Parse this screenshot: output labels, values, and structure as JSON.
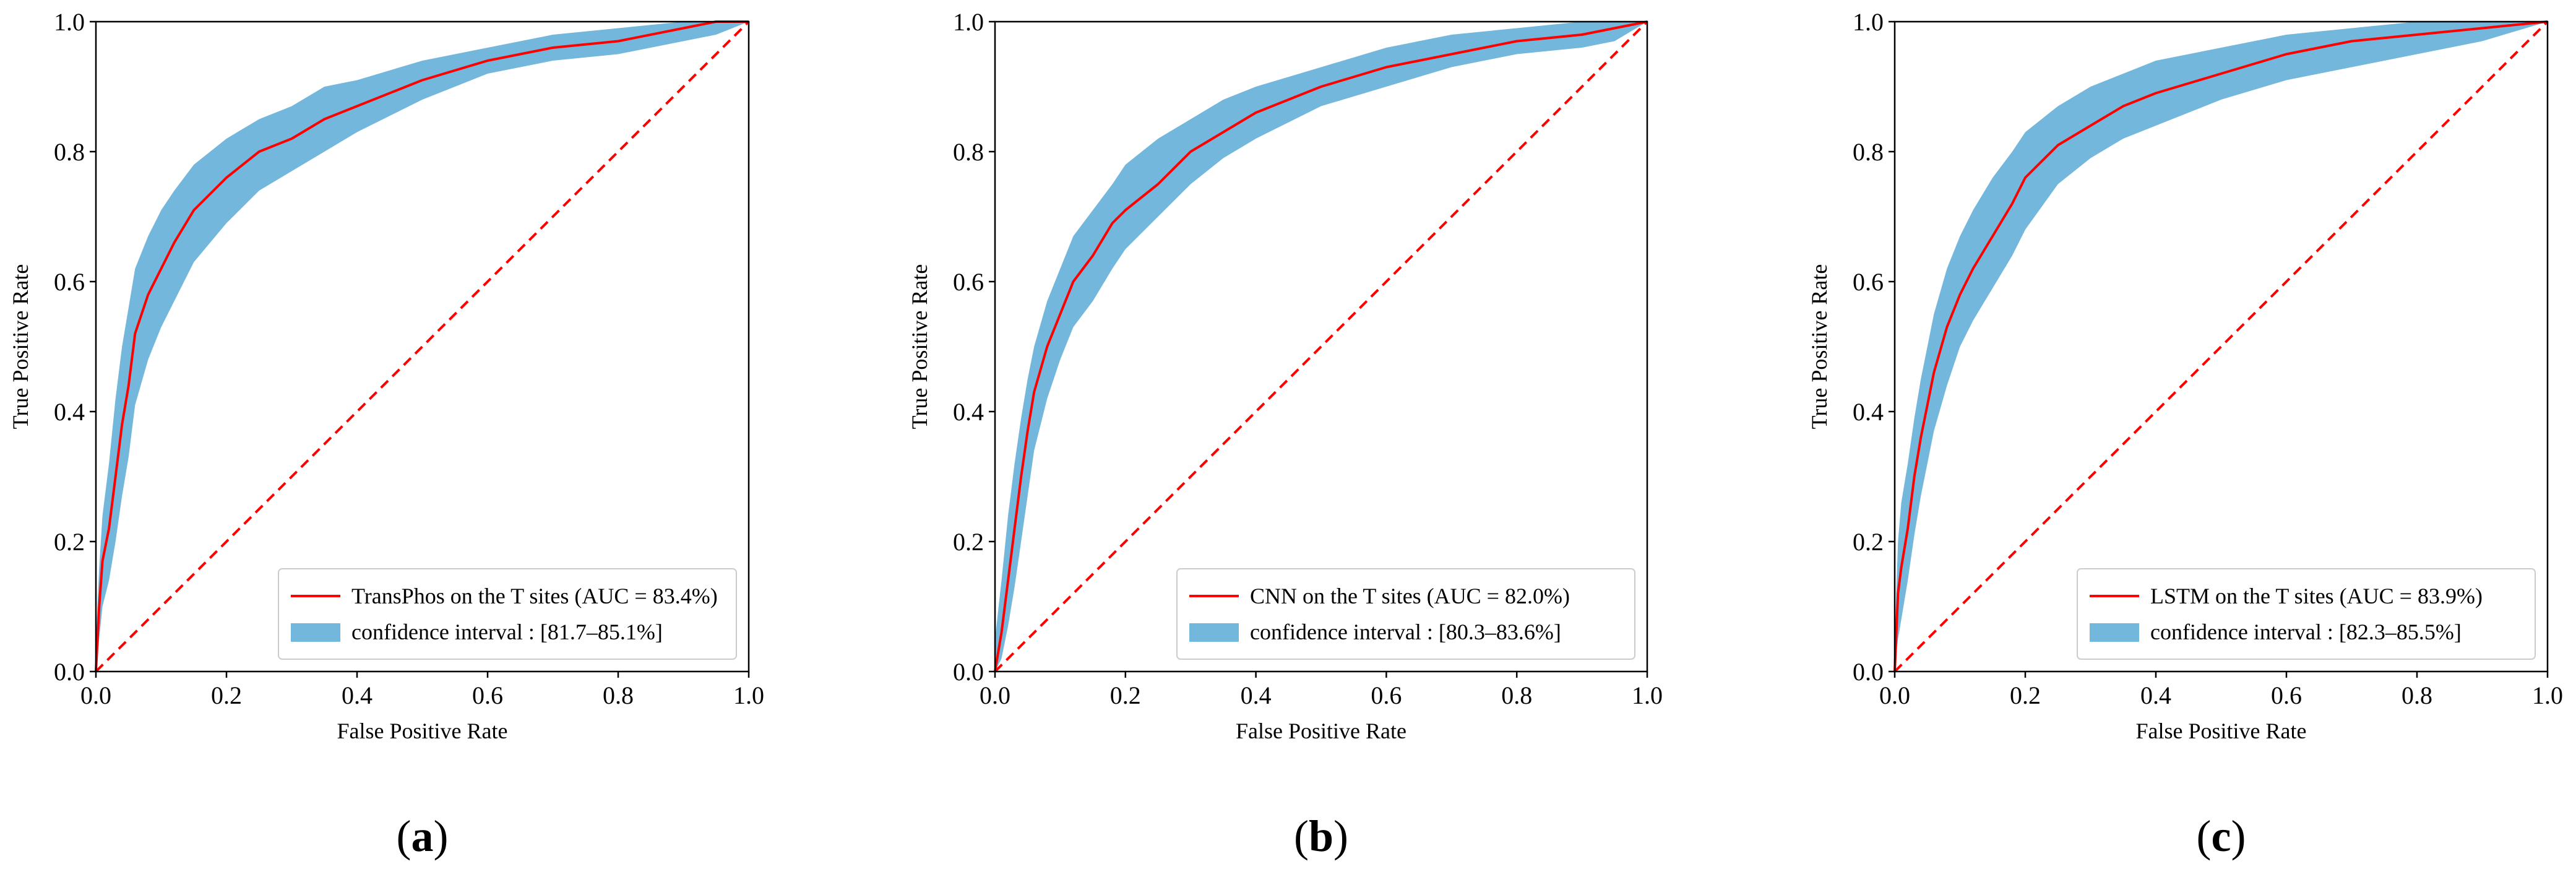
{
  "chart_data": [
    {
      "panel": "a",
      "panel_label": "(a)",
      "type": "line",
      "xlabel": "False Positive Rate",
      "ylabel": "True Positive Rate",
      "xlim": [
        0.0,
        1.0
      ],
      "ylim": [
        0.0,
        1.0
      ],
      "xticks": [
        "0.0",
        "0.2",
        "0.4",
        "0.6",
        "0.8",
        "1.0"
      ],
      "yticks": [
        "0.0",
        "0.2",
        "0.4",
        "0.6",
        "0.8",
        "1.0"
      ],
      "legend_position": "lower-right",
      "colors": {
        "roc": "#ff0000",
        "band": "#74b7dc",
        "diagonal": "#ff0000"
      },
      "roc": {
        "label": "TransPhos on the T sites (AUC = 83.4%)",
        "x": [
          0.0,
          0.005,
          0.01,
          0.02,
          0.03,
          0.04,
          0.05,
          0.06,
          0.08,
          0.1,
          0.12,
          0.15,
          0.2,
          0.25,
          0.3,
          0.35,
          0.4,
          0.5,
          0.6,
          0.7,
          0.8,
          0.9,
          0.95,
          1.0
        ],
        "y": [
          0.0,
          0.1,
          0.17,
          0.22,
          0.3,
          0.38,
          0.44,
          0.52,
          0.58,
          0.62,
          0.66,
          0.71,
          0.76,
          0.8,
          0.82,
          0.85,
          0.87,
          0.91,
          0.94,
          0.96,
          0.97,
          0.99,
          1.0,
          1.0
        ]
      },
      "band": {
        "label": "confidence interval : [81.7–85.1%]",
        "x": [
          0.0,
          0.005,
          0.01,
          0.02,
          0.03,
          0.04,
          0.05,
          0.06,
          0.08,
          0.1,
          0.12,
          0.15,
          0.2,
          0.25,
          0.3,
          0.35,
          0.4,
          0.5,
          0.6,
          0.7,
          0.8,
          0.9,
          0.95,
          1.0
        ],
        "upper": [
          0.05,
          0.16,
          0.24,
          0.32,
          0.42,
          0.5,
          0.56,
          0.62,
          0.67,
          0.71,
          0.74,
          0.78,
          0.82,
          0.85,
          0.87,
          0.9,
          0.91,
          0.94,
          0.96,
          0.98,
          0.99,
          1.0,
          1.0,
          1.0
        ],
        "lower": [
          0.0,
          0.05,
          0.1,
          0.14,
          0.2,
          0.27,
          0.33,
          0.41,
          0.48,
          0.53,
          0.57,
          0.63,
          0.69,
          0.74,
          0.77,
          0.8,
          0.83,
          0.88,
          0.92,
          0.94,
          0.95,
          0.97,
          0.98,
          1.0
        ]
      },
      "diagonal": {
        "x": [
          0.0,
          1.0
        ],
        "y": [
          0.0,
          1.0
        ],
        "style": "dashed"
      }
    },
    {
      "panel": "b",
      "panel_label": "(b)",
      "type": "line",
      "xlabel": "False Positive Rate",
      "ylabel": "True Positive Rate",
      "xlim": [
        0.0,
        1.0
      ],
      "ylim": [
        0.0,
        1.0
      ],
      "xticks": [
        "0.0",
        "0.2",
        "0.4",
        "0.6",
        "0.8",
        "1.0"
      ],
      "yticks": [
        "0.0",
        "0.2",
        "0.4",
        "0.6",
        "0.8",
        "1.0"
      ],
      "legend_position": "lower-right",
      "colors": {
        "roc": "#ff0000",
        "band": "#74b7dc",
        "diagonal": "#ff0000"
      },
      "roc": {
        "label": "CNN on the T sites (AUC = 82.0%)",
        "x": [
          0.0,
          0.01,
          0.02,
          0.03,
          0.04,
          0.05,
          0.06,
          0.08,
          0.1,
          0.12,
          0.15,
          0.18,
          0.2,
          0.25,
          0.3,
          0.35,
          0.4,
          0.5,
          0.6,
          0.7,
          0.8,
          0.9,
          0.95,
          1.0
        ],
        "y": [
          0.0,
          0.06,
          0.14,
          0.22,
          0.3,
          0.37,
          0.43,
          0.5,
          0.55,
          0.6,
          0.64,
          0.69,
          0.71,
          0.75,
          0.8,
          0.83,
          0.86,
          0.9,
          0.93,
          0.95,
          0.97,
          0.98,
          0.99,
          1.0
        ]
      },
      "band": {
        "label": "confidence interval : [80.3–83.6%]",
        "x": [
          0.0,
          0.01,
          0.02,
          0.03,
          0.04,
          0.05,
          0.06,
          0.08,
          0.1,
          0.12,
          0.15,
          0.18,
          0.2,
          0.25,
          0.3,
          0.35,
          0.4,
          0.5,
          0.6,
          0.7,
          0.8,
          0.9,
          0.95,
          1.0
        ],
        "upper": [
          0.05,
          0.14,
          0.24,
          0.32,
          0.39,
          0.45,
          0.5,
          0.57,
          0.62,
          0.67,
          0.71,
          0.75,
          0.78,
          0.82,
          0.85,
          0.88,
          0.9,
          0.93,
          0.96,
          0.98,
          0.99,
          1.0,
          1.0,
          1.0
        ],
        "lower": [
          0.0,
          0.02,
          0.07,
          0.13,
          0.2,
          0.27,
          0.34,
          0.42,
          0.48,
          0.53,
          0.57,
          0.62,
          0.65,
          0.7,
          0.75,
          0.79,
          0.82,
          0.87,
          0.9,
          0.93,
          0.95,
          0.96,
          0.97,
          1.0
        ]
      },
      "diagonal": {
        "x": [
          0.0,
          1.0
        ],
        "y": [
          0.0,
          1.0
        ],
        "style": "dashed"
      }
    },
    {
      "panel": "c",
      "panel_label": "(c)",
      "type": "line",
      "xlabel": "False Positive Rate",
      "ylabel": "True Positive Rate",
      "xlim": [
        0.0,
        1.0
      ],
      "ylim": [
        0.0,
        1.0
      ],
      "xticks": [
        "0.0",
        "0.2",
        "0.4",
        "0.6",
        "0.8",
        "1.0"
      ],
      "yticks": [
        "0.0",
        "0.2",
        "0.4",
        "0.6",
        "0.8",
        "1.0"
      ],
      "legend_position": "lower-right",
      "colors": {
        "roc": "#ff0000",
        "band": "#74b7dc",
        "diagonal": "#ff0000"
      },
      "roc": {
        "label": "LSTM on the T sites (AUC = 83.9%)",
        "x": [
          0.0,
          0.005,
          0.01,
          0.02,
          0.03,
          0.04,
          0.05,
          0.06,
          0.08,
          0.1,
          0.12,
          0.15,
          0.18,
          0.2,
          0.25,
          0.3,
          0.35,
          0.4,
          0.5,
          0.6,
          0.7,
          0.8,
          0.9,
          1.0
        ],
        "y": [
          0.0,
          0.12,
          0.16,
          0.22,
          0.3,
          0.36,
          0.41,
          0.46,
          0.53,
          0.58,
          0.62,
          0.67,
          0.72,
          0.76,
          0.81,
          0.84,
          0.87,
          0.89,
          0.92,
          0.95,
          0.97,
          0.98,
          0.99,
          1.0
        ]
      },
      "band": {
        "label": "confidence interval : [82.3–85.5%]",
        "x": [
          0.0,
          0.005,
          0.01,
          0.02,
          0.03,
          0.04,
          0.05,
          0.06,
          0.08,
          0.1,
          0.12,
          0.15,
          0.18,
          0.2,
          0.25,
          0.3,
          0.35,
          0.4,
          0.5,
          0.6,
          0.7,
          0.8,
          0.9,
          1.0
        ],
        "upper": [
          0.05,
          0.2,
          0.26,
          0.32,
          0.39,
          0.45,
          0.5,
          0.55,
          0.62,
          0.67,
          0.71,
          0.76,
          0.8,
          0.83,
          0.87,
          0.9,
          0.92,
          0.94,
          0.96,
          0.98,
          0.99,
          1.0,
          1.0,
          1.0
        ],
        "lower": [
          0.0,
          0.05,
          0.08,
          0.14,
          0.21,
          0.27,
          0.32,
          0.37,
          0.44,
          0.5,
          0.54,
          0.59,
          0.64,
          0.68,
          0.75,
          0.79,
          0.82,
          0.84,
          0.88,
          0.91,
          0.93,
          0.95,
          0.97,
          1.0
        ]
      },
      "diagonal": {
        "x": [
          0.0,
          1.0
        ],
        "y": [
          0.0,
          1.0
        ],
        "style": "dashed"
      }
    }
  ]
}
